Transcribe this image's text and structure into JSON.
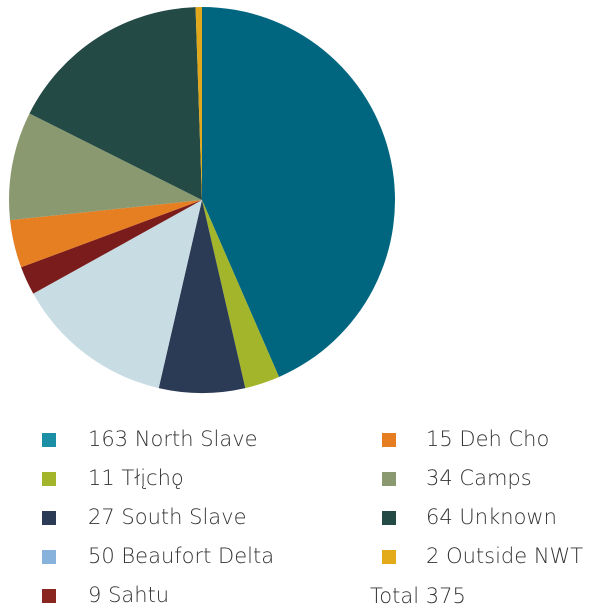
{
  "chart_data": {
    "type": "pie",
    "categories": [
      "North Slave",
      "Tłįchǫ",
      "South Slave",
      "Beaufort Delta",
      "Sahtu",
      "Deh Cho",
      "Camps",
      "Unknown",
      "Outside NWT"
    ],
    "values": [
      163,
      11,
      27,
      50,
      9,
      15,
      34,
      64,
      2
    ],
    "colors": [
      "#006680",
      "#a3b52a",
      "#2b3a55",
      "#c8dce3",
      "#7a1c1c",
      "#e67e22",
      "#8a9970",
      "#234a45",
      "#e0a81a"
    ],
    "legend_colors": [
      "#1b8fa6",
      "#a3b52a",
      "#2b3a55",
      "#86b2dc",
      "#8a2620",
      "#e67e22",
      "#8a9970",
      "#234a45",
      "#e3aa1a"
    ],
    "total_label": "Total",
    "total": 375
  }
}
